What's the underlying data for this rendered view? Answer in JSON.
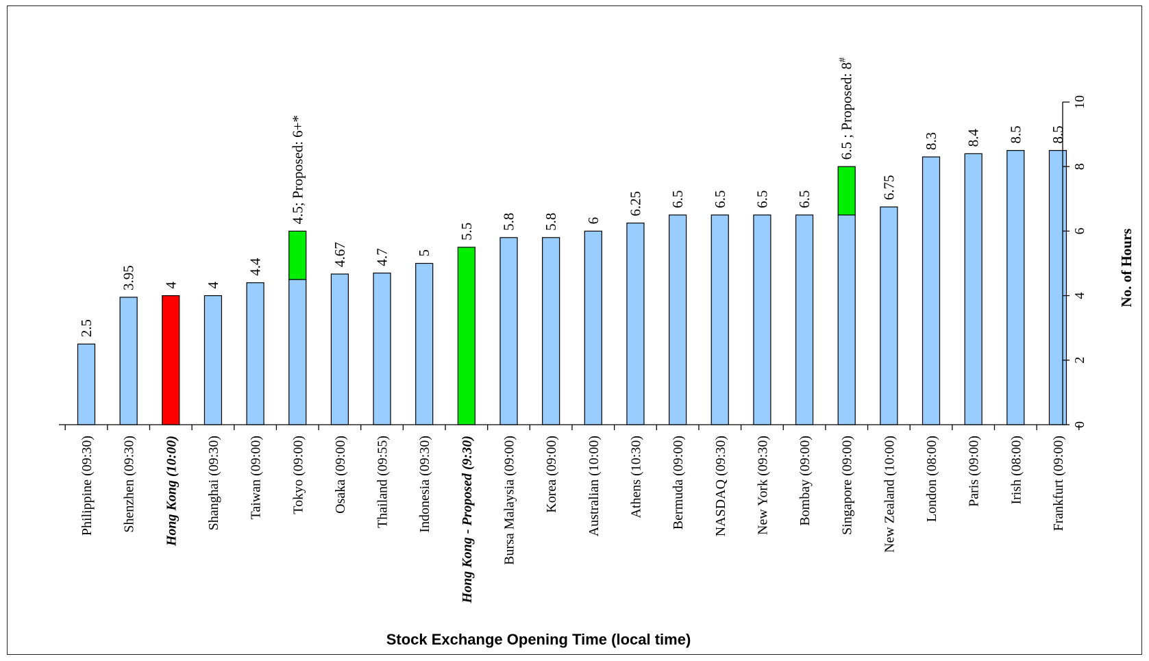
{
  "chart_data": {
    "type": "bar",
    "orientation": "rotated-90-clockwise",
    "xlabel": "Stock Exchange Opening Time (local time)",
    "ylabel": "No. of Hours",
    "ylim": [
      0,
      10
    ],
    "y_ticks": [
      "0",
      "2",
      "4",
      "6",
      "8",
      "10"
    ],
    "grid": false,
    "colors": {
      "default": "#99CCFF",
      "highlight_current": "#FF0000",
      "proposed": "#00EE00",
      "axis": "#000000"
    },
    "categories": [
      "Philippine (09:30)",
      "Shenzhen (09:30)",
      "Hong Kong (10:00)",
      "Shanghai (09:30)",
      "Taiwan (09:00)",
      "Tokyo (09:00)",
      "Osaka (09:00)",
      "Thailand (09:55)",
      "Indonesia (09:30)",
      "Hong Kong - Proposed (9:30)",
      "Bursa Malaysia (09:00)",
      "Korea (09:00)",
      "Australian (10:00)",
      "Athens (10:30)",
      "Bermuda (09:00)",
      "NASDAQ (09:30)",
      "New York (09:30)",
      "Bombay (09:00)",
      "Singapore (09:00)",
      "New Zealand (10:00)",
      "London (08:00)",
      "Paris (09:00)",
      "Irish (08:00)",
      "Frankfurt (09:00)"
    ],
    "category_emphasis": [
      "normal",
      "normal",
      "bold-italic",
      "normal",
      "normal",
      "normal",
      "normal",
      "normal",
      "normal",
      "bold-italic",
      "normal",
      "normal",
      "normal",
      "normal",
      "normal",
      "normal",
      "normal",
      "normal",
      "normal",
      "normal",
      "normal",
      "normal",
      "normal",
      "normal"
    ],
    "series": [
      {
        "values": [
          2.5,
          3.95,
          4,
          4,
          4.4,
          4.5,
          4.67,
          4.7,
          5,
          5.5,
          5.8,
          5.8,
          6,
          6.25,
          6.5,
          6.5,
          6.5,
          6.5,
          6.5,
          6.75,
          8.3,
          8.4,
          8.5,
          8.5
        ],
        "bar_colors": [
          "#99CCFF",
          "#99CCFF",
          "#FF0000",
          "#99CCFF",
          "#99CCFF",
          "#99CCFF",
          "#99CCFF",
          "#99CCFF",
          "#99CCFF",
          "#00EE00",
          "#99CCFF",
          "#99CCFF",
          "#99CCFF",
          "#99CCFF",
          "#99CCFF",
          "#99CCFF",
          "#99CCFF",
          "#99CCFF",
          "#99CCFF",
          "#99CCFF",
          "#99CCFF",
          "#99CCFF",
          "#99CCFF",
          "#99CCFF"
        ]
      },
      {
        "role": "proposed extension",
        "values": [
          0,
          0,
          0,
          0,
          0,
          1.5,
          0,
          0,
          0,
          0,
          0,
          0,
          0,
          0,
          0,
          0,
          0,
          0,
          1.5,
          0,
          0,
          0,
          0,
          0
        ],
        "color": "#00EE00"
      }
    ],
    "data_labels": [
      "2.5",
      "3.95",
      "4",
      "4",
      "4.4",
      "4.5; Proposed: 6+*",
      "4.67",
      "4.7",
      "5",
      "5.5",
      "5.8",
      "5.8",
      "6",
      "6.25",
      "6.5",
      "6.5",
      "6.5",
      "6.5",
      "6.5 ; Proposed: 8#",
      "6.75",
      "8.3",
      "8.4",
      "8.5",
      "8.5"
    ]
  }
}
